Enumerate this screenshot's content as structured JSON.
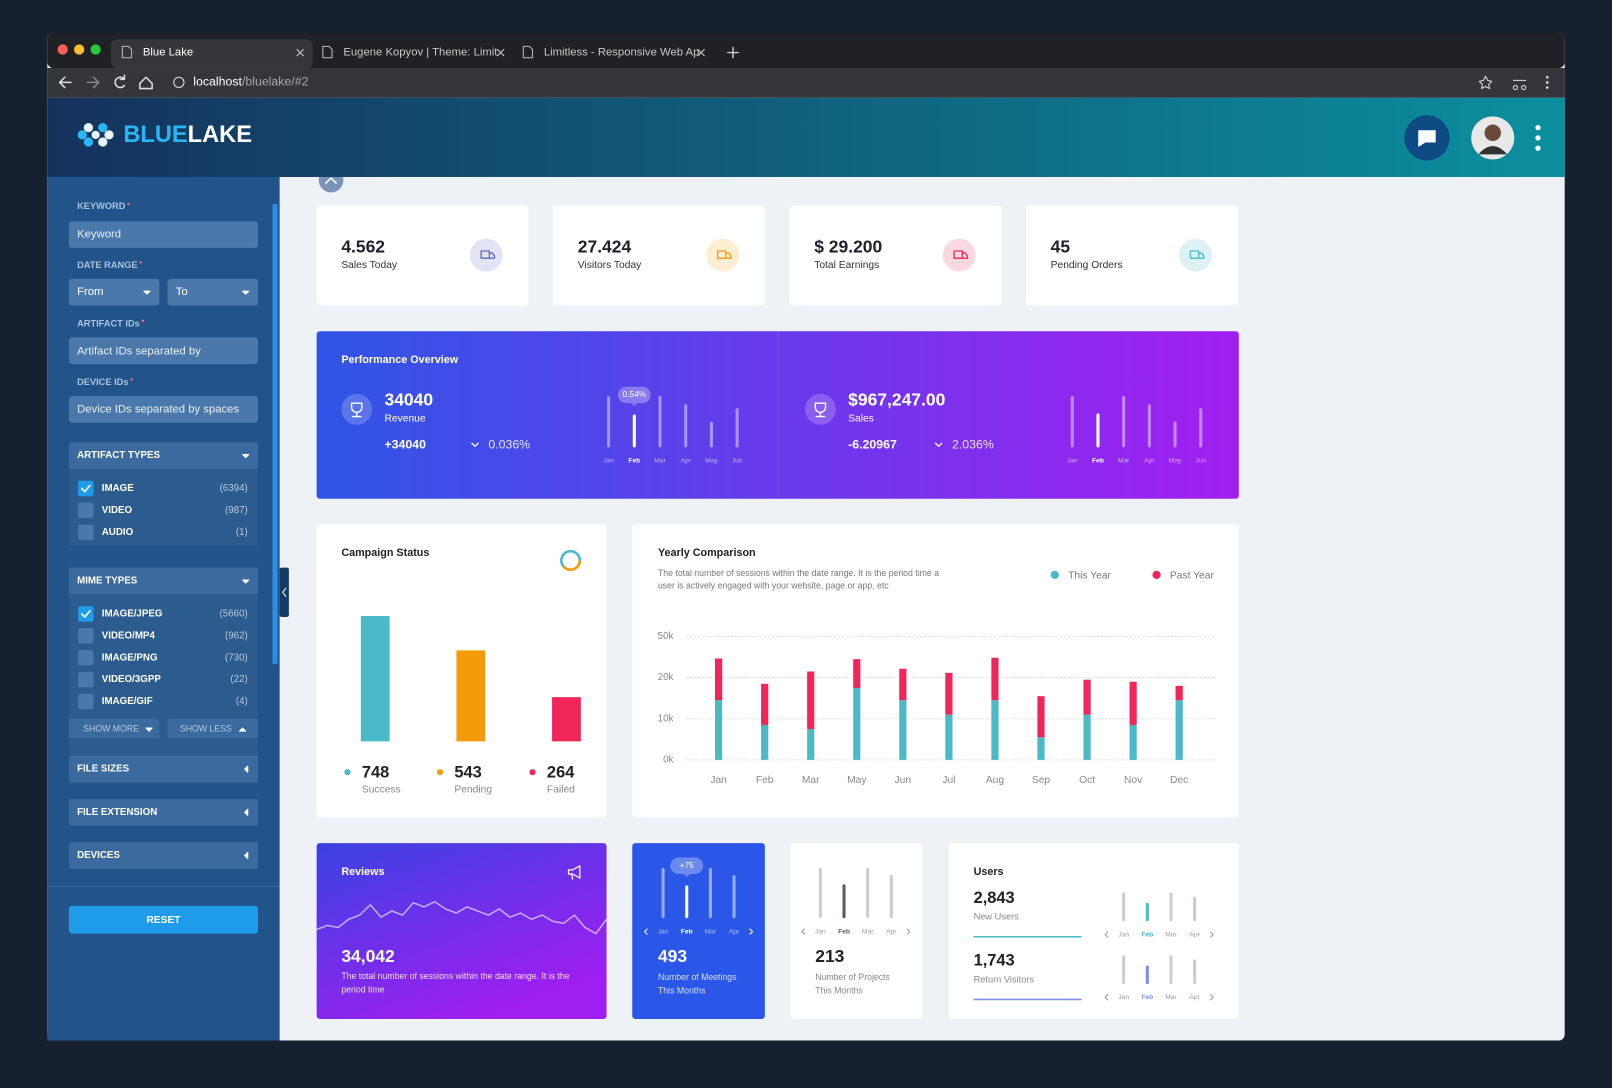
{
  "browser": {
    "tabs": [
      "Blue Lake",
      "Eugene Kopyov | Theme: Limit",
      "Limitless - Responsive Web Ap"
    ],
    "url_host": "localhost",
    "url_path": "/bluelake/#2"
  },
  "header": {
    "brand_accent": "BLUE",
    "brand": "LAKE"
  },
  "sidebar": {
    "keyword": {
      "label": "KEYWORD",
      "placeholder": "Keyword"
    },
    "date_range": {
      "label": "DATE RANGE",
      "from": "From",
      "to": "To"
    },
    "artifact_ids": {
      "label": "ARTIFACT IDs",
      "placeholder": "Artifact IDs separated by"
    },
    "device_ids": {
      "label": "DEVICE IDs",
      "placeholder": "Device IDs separated by spaces"
    },
    "artifact_types": {
      "title": "ARTIFACT TYPES",
      "items": [
        {
          "label": "IMAGE",
          "count": "(6394)",
          "checked": true
        },
        {
          "label": "VIDEO",
          "count": "(987)",
          "checked": false
        },
        {
          "label": "AUDIO",
          "count": "(1)",
          "checked": false
        }
      ]
    },
    "mime_types": {
      "title": "MIME TYPES",
      "items": [
        {
          "label": "IMAGE/JPEG",
          "count": "(5660)",
          "checked": true
        },
        {
          "label": "VIDEO/MP4",
          "count": "(962)",
          "checked": false
        },
        {
          "label": "IMAGE/PNG",
          "count": "(730)",
          "checked": false
        },
        {
          "label": "VIDEO/3GPP",
          "count": "(22)",
          "checked": false
        },
        {
          "label": "IMAGE/GIF",
          "count": "(4)",
          "checked": false
        }
      ],
      "show_more": "SHOW MORE",
      "show_less": "SHOW LESS"
    },
    "collapsed": [
      "FILE SIZES",
      "FILE EXTENSION",
      "DEVICES"
    ],
    "reset": "RESET"
  },
  "stats": [
    {
      "value": "4.562",
      "label": "Sales Today",
      "color": "#5c6bc0"
    },
    {
      "value": "27.424",
      "label": "Visitors Today",
      "color": "#f59a0a"
    },
    {
      "value": "$ 29.200",
      "label": "Total Earnings",
      "color": "#f0265a"
    },
    {
      "value": "45",
      "label": "Pending Orders",
      "color": "#4ab9c8"
    }
  ],
  "performance": {
    "title": "Performance Overview",
    "panels": [
      {
        "value": "34040",
        "label": "Revenue",
        "change": "+34040",
        "percent": "0.036%",
        "tooltip": "0.54%",
        "months": [
          "Jan",
          "Feb",
          "Mar",
          "Apr",
          "May",
          "Jun"
        ],
        "bars": [
          50,
          32,
          50,
          42,
          25,
          38
        ],
        "active": 1
      },
      {
        "value": "$967,247.00",
        "label": "Sales",
        "change": "-6.20967",
        "percent": "2.036%",
        "months": [
          "Jan",
          "Feb",
          "Mar",
          "Apr",
          "May",
          "Jun"
        ],
        "bars": [
          50,
          33,
          50,
          42,
          25,
          38
        ],
        "active": 1
      }
    ]
  },
  "campaign": {
    "title": "Campaign Status",
    "items": [
      {
        "value": 748,
        "label": "Success",
        "color": "#4ab9c8"
      },
      {
        "value": 543,
        "label": "Pending",
        "color": "#f59a0a"
      },
      {
        "value": 264,
        "label": "Failed",
        "color": "#f0265a"
      }
    ]
  },
  "yearly": {
    "title": "Yearly Comparison",
    "subtitle": [
      "The total number of sessions within the date range. It is the period time a",
      "user is actively engaged with your website, page or app, etc"
    ],
    "categories": [
      "Jan",
      "Feb",
      "Mar",
      "May",
      "Jun",
      "Jul",
      "Aug",
      "Sep",
      "Oct",
      "Nov",
      "Dec"
    ],
    "series": [
      {
        "name": "This Year",
        "color": "#4ab9c8",
        "values": [
          14500,
          8500,
          7500,
          17500,
          14500,
          11000,
          14500,
          5500,
          11000,
          8500,
          14500
        ]
      },
      {
        "name": "Past Year",
        "color": "#f0265a",
        "values": [
          19500,
          10000,
          17000,
          16000,
          12000,
          12500,
          20000,
          10000,
          8500,
          10500,
          3500
        ]
      }
    ],
    "ylim": [
      0,
      50000
    ],
    "yticks": [
      {
        "value": 0,
        "label": "0k"
      },
      {
        "value": 10000,
        "label": "10k"
      },
      {
        "value": 20000,
        "label": "20k"
      },
      {
        "value": 50000,
        "label": "50k"
      }
    ],
    "grid": true
  },
  "reviews": {
    "title": "Reviews",
    "value": "34,042",
    "text": [
      "The total number of sessions within the date range. It is the",
      "period time"
    ],
    "trend": [
      8,
      12,
      10,
      18,
      22,
      32,
      20,
      26,
      22,
      34,
      30,
      35,
      28,
      24,
      30,
      26,
      22,
      28,
      20,
      24,
      18,
      22,
      16,
      14,
      22,
      10,
      4,
      18
    ]
  },
  "meetings": {
    "value": "493",
    "label": [
      "Number of Meetings",
      "This Months"
    ],
    "tooltip": "+75",
    "months": [
      "Jan",
      "Feb",
      "Mar",
      "Apr"
    ],
    "bars": [
      49,
      32,
      49,
      42
    ],
    "active": 1
  },
  "projects": {
    "value": "213",
    "label": [
      "Number of Projects",
      "This Months"
    ],
    "months": [
      "Jan",
      "Feb",
      "Mar",
      "Apr"
    ],
    "bars": [
      49,
      33,
      49,
      42
    ],
    "active": 1
  },
  "users": {
    "title": "Users",
    "metrics": [
      {
        "value": "2,843",
        "label": "New Users",
        "color": "#4ab9c8",
        "months": [
          "Jan",
          "Feb",
          "Mar",
          "Apr"
        ],
        "bars": [
          28,
          18,
          28,
          24
        ],
        "active": 1
      },
      {
        "value": "1,743",
        "label": "Return Visitors",
        "color": "#7f8fe6",
        "months": [
          "Jan",
          "Feb",
          "Mar",
          "Apr"
        ],
        "bars": [
          28,
          18,
          28,
          24
        ],
        "active": 1
      }
    ]
  }
}
